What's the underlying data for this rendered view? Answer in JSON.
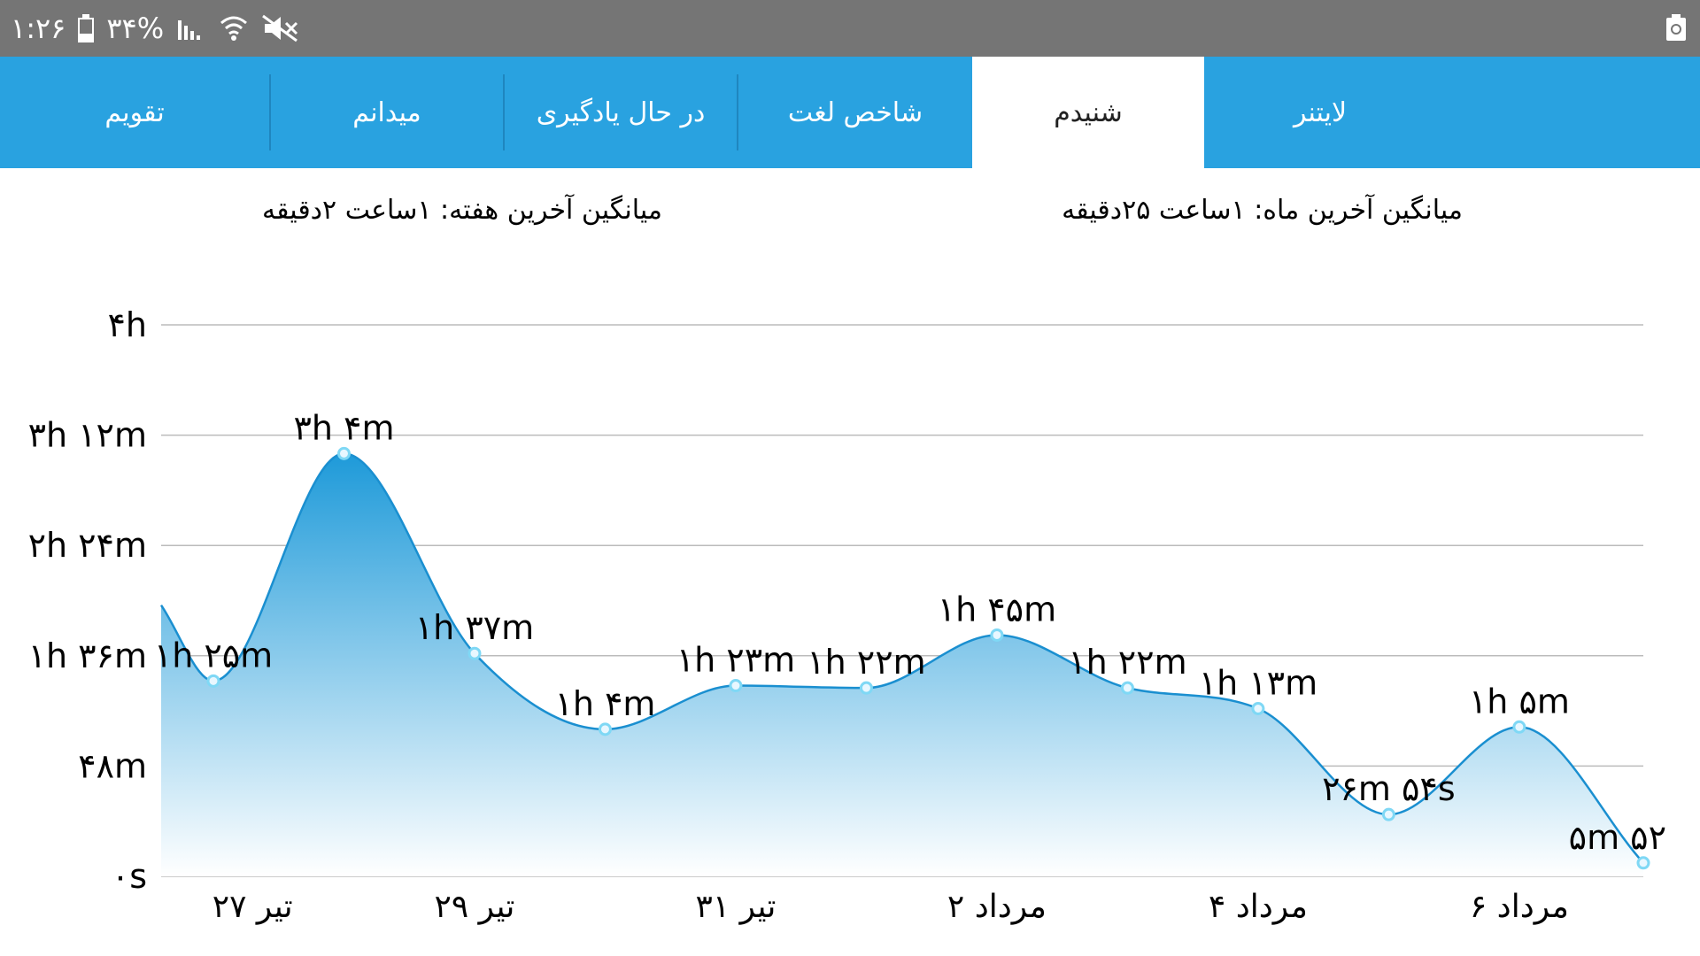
{
  "status_bar": {
    "time": "۱:۲۶",
    "battery_percent": "۳۴%",
    "battery_level": 0.34
  },
  "tabs": [
    {
      "label": "تقویم",
      "active": false
    },
    {
      "label": "میدانم",
      "active": false
    },
    {
      "label": "در حال یادگیری",
      "active": false
    },
    {
      "label": "شاخص لغت",
      "active": false
    },
    {
      "label": "شنیدم",
      "active": true
    },
    {
      "label": "لایتنر",
      "active": false
    }
  ],
  "averages": {
    "month": "میانگین آخرین ماه: ۱ساعت  ۲۵دقیقه",
    "week": "میانگین آخرین هفته: ۱ساعت  ۲دقیقه"
  },
  "colors": {
    "accent": "#29a2e0",
    "area_top": "#1e9ad9",
    "area_bottom": "#ffffff",
    "line": "#1a8fd0",
    "point_fill": "#e8f7ff",
    "point_stroke": "#7fd8f5",
    "grid": "#bbbbbb"
  },
  "chart_data": {
    "type": "area",
    "title": "",
    "xlabel": "",
    "ylabel": "",
    "ylim": [
      0,
      240
    ],
    "y_unit": "minutes",
    "y_ticks": [
      {
        "value": 0,
        "label": "۰s"
      },
      {
        "value": 48,
        "label": "۴۸m"
      },
      {
        "value": 96,
        "label": "۱h ۳۶m"
      },
      {
        "value": 144,
        "label": "۲h ۲۴m"
      },
      {
        "value": 192,
        "label": "۳h ۱۲m"
      },
      {
        "value": 240,
        "label": "۴h"
      }
    ],
    "x_range": [
      -0.4,
      10.95
    ],
    "x_ticks": [
      {
        "index": 0.3,
        "label": "۲۷ تیر"
      },
      {
        "index": 2.0,
        "label": "۲۹ تیر"
      },
      {
        "index": 4.0,
        "label": "۳۱ تیر"
      },
      {
        "index": 6.0,
        "label": "۲ مرداد"
      },
      {
        "index": 8.0,
        "label": "۴ مرداد"
      },
      {
        "index": 10.0,
        "label": "۶ مرداد"
      }
    ],
    "start_value": 118,
    "points": [
      {
        "index": 0,
        "value": 85,
        "label": "۱h ۲۵m"
      },
      {
        "index": 1,
        "value": 184,
        "label": "۳h ۴m"
      },
      {
        "index": 2,
        "value": 97,
        "label": "۱h ۳۷m"
      },
      {
        "index": 3,
        "value": 64,
        "label": "۱h ۴m"
      },
      {
        "index": 4,
        "value": 83,
        "label": "۱h ۲۳m"
      },
      {
        "index": 5,
        "value": 82,
        "label": "۱h ۲۲m"
      },
      {
        "index": 6,
        "value": 105,
        "label": "۱h ۴۵m"
      },
      {
        "index": 7,
        "value": 82,
        "label": "۱h ۲۲m"
      },
      {
        "index": 8,
        "value": 73,
        "label": "۱h ۱۳m"
      },
      {
        "index": 9,
        "value": 26.9,
        "label": "۲۶m ۵۴s"
      },
      {
        "index": 10,
        "value": 65,
        "label": "۱h ۵m"
      },
      {
        "index": 11,
        "value": 5.87,
        "label": "۵m ۵۲"
      }
    ],
    "grid": true,
    "legend": "none"
  }
}
